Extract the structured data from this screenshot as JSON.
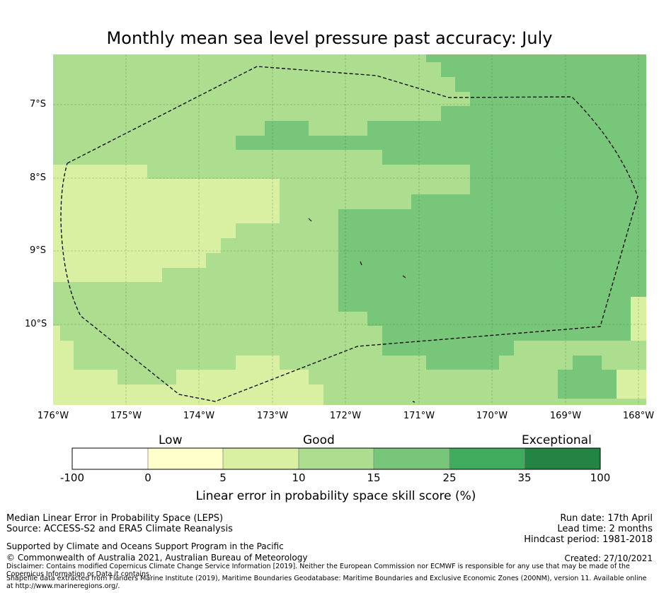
{
  "title": "Monthly mean sea level pressure past accuracy: July",
  "map": {
    "lon_range": [
      -176,
      -168
    ],
    "lat_range": [
      -11.1,
      -6.3
    ],
    "lon_ticks": [
      "176°W",
      "175°W",
      "174°W",
      "173°W",
      "172°W",
      "171°W",
      "170°W",
      "169°W",
      "168°W"
    ],
    "lat_ticks": [
      "7°S",
      "8°S",
      "9°S",
      "10°S"
    ],
    "grid": true,
    "eez_boundary_style": "dashed",
    "base_category": "good"
  },
  "colorbar": {
    "categories": [
      {
        "label": "Low"
      },
      {
        "label": "Good"
      },
      {
        "label": "Exceptional"
      }
    ],
    "ticks": [
      "-100",
      "0",
      "5",
      "10",
      "15",
      "25",
      "35",
      "100"
    ],
    "colors": [
      "#ffffff",
      "#ffffcc",
      "#d9f0a3",
      "#addd8e",
      "#78c679",
      "#41ab5d",
      "#238443"
    ],
    "label": "Linear error in probability space skill score (%)"
  },
  "footer": {
    "method": "Median Linear Error in Probability Space (LEPS)",
    "source": "Source: ACCESS-S2 and ERA5 Climate Reanalysis",
    "support": "Supported by Climate and Oceans Support Program in the Pacific",
    "copyright": "© Commonwealth of Australia 2021, Australian Bureau of Meteorology",
    "disclaimer": "Disclaimer: Contains modified Copernicus Climate Change Service Information [2019]. Neither the European Commission nor ECMWF is responsible for any use that may be made of the Copernicus Information or Data it contains.",
    "shapefile": "Shapefile data extracted from Flanders Marine Institute (2019), Maritime Boundaries Geodatabase: Maritime Boundaries and Exclusive Economic Zones (200NM), version 11. Available online at http://www.marineregions.org/.",
    "run_date": "Run date: 17th April",
    "lead_time": "Lead time: 2 months",
    "hindcast": "Hindcast period: 1981-2018",
    "created": "Created: 27/10/2021"
  }
}
